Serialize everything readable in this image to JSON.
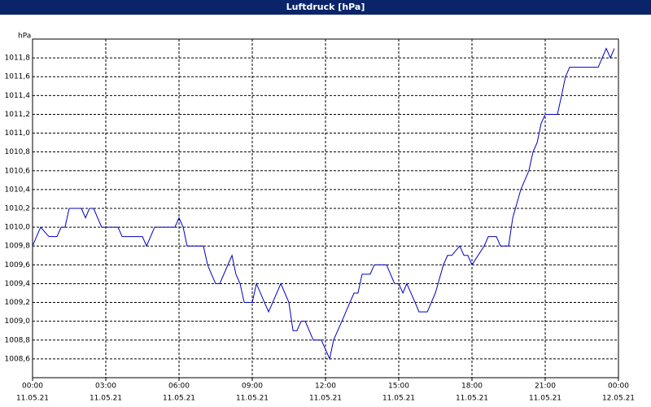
{
  "chart_data": {
    "type": "line",
    "title": "Luftdruck [hPa]",
    "y_label": "hPa",
    "x": [
      0,
      0.33,
      0.67,
      1.0,
      1.17,
      1.33,
      1.5,
      2.0,
      2.17,
      2.33,
      2.5,
      2.83,
      3.5,
      3.67,
      4.5,
      4.67,
      5.0,
      5.83,
      6.0,
      6.17,
      6.33,
      7.0,
      7.17,
      7.33,
      7.5,
      7.67,
      8.0,
      8.17,
      8.33,
      8.5,
      8.67,
      9.0,
      9.17,
      9.5,
      9.67,
      10.17,
      10.5,
      10.67,
      10.83,
      11.0,
      11.17,
      11.5,
      11.83,
      12.17,
      12.33,
      12.67,
      13.0,
      13.17,
      13.33,
      13.5,
      13.83,
      14.0,
      14.5,
      14.83,
      15.0,
      15.17,
      15.33,
      15.67,
      15.83,
      16.17,
      16.5,
      16.83,
      17.0,
      17.17,
      17.5,
      17.67,
      17.83,
      18.0,
      18.5,
      18.67,
      19.0,
      19.17,
      19.5,
      19.67,
      20.0,
      20.33,
      20.5,
      20.67,
      20.83,
      21.0,
      21.5,
      21.67,
      21.83,
      22.0,
      23.17,
      23.5,
      23.67,
      23.83
    ],
    "series": [
      {
        "color": "#0000c0",
        "values": [
          1009.8,
          1010.0,
          1009.9,
          1009.9,
          1010.0,
          1010.0,
          1010.2,
          1010.2,
          1010.1,
          1010.2,
          1010.2,
          1010.0,
          1010.0,
          1009.9,
          1009.9,
          1009.8,
          1010.0,
          1010.0,
          1010.1,
          1010.0,
          1009.8,
          1009.8,
          1009.6,
          1009.5,
          1009.4,
          1009.4,
          1009.6,
          1009.7,
          1009.5,
          1009.4,
          1009.2,
          1009.2,
          1009.4,
          1009.2,
          1009.1,
          1009.4,
          1009.2,
          1008.9,
          1008.9,
          1009.0,
          1009.0,
          1008.8,
          1008.8,
          1008.6,
          1008.8,
          1009.0,
          1009.2,
          1009.3,
          1009.3,
          1009.5,
          1009.5,
          1009.6,
          1009.6,
          1009.4,
          1009.4,
          1009.3,
          1009.4,
          1009.2,
          1009.1,
          1009.1,
          1009.3,
          1009.6,
          1009.7,
          1009.7,
          1009.8,
          1009.7,
          1009.7,
          1009.6,
          1009.8,
          1009.9,
          1009.9,
          1009.8,
          1009.8,
          1010.1,
          1010.4,
          1010.6,
          1010.8,
          1010.9,
          1011.1,
          1011.2,
          1011.2,
          1011.4,
          1011.6,
          1011.7,
          1011.7,
          1011.9,
          1011.8,
          1011.9
        ]
      }
    ],
    "xlim": [
      0,
      24
    ],
    "xticks": [
      {
        "value": 0,
        "label": "00:00",
        "date": "11.05.21"
      },
      {
        "value": 3,
        "label": "03:00",
        "date": "11.05.21"
      },
      {
        "value": 6,
        "label": "06:00",
        "date": "11.05.21"
      },
      {
        "value": 9,
        "label": "09:00",
        "date": "11.05.21"
      },
      {
        "value": 12,
        "label": "12:00",
        "date": "11.05.21"
      },
      {
        "value": 15,
        "label": "15:00",
        "date": "11.05.21"
      },
      {
        "value": 18,
        "label": "18:00",
        "date": "11.05.21"
      },
      {
        "value": 21,
        "label": "21:00",
        "date": "11.05.21"
      },
      {
        "value": 24,
        "label": "00:00",
        "date": "12.05.21"
      }
    ],
    "ylim": [
      1008.4,
      1012.0
    ],
    "yticks": [
      {
        "value": 1008.6,
        "label": "1008,6"
      },
      {
        "value": 1008.8,
        "label": "1008,8"
      },
      {
        "value": 1009.0,
        "label": "1009,0"
      },
      {
        "value": 1009.2,
        "label": "1009,2"
      },
      {
        "value": 1009.4,
        "label": "1009,4"
      },
      {
        "value": 1009.6,
        "label": "1009,6"
      },
      {
        "value": 1009.8,
        "label": "1009,8"
      },
      {
        "value": 1010.0,
        "label": "1010,0"
      },
      {
        "value": 1010.2,
        "label": "1010,2"
      },
      {
        "value": 1010.4,
        "label": "1010,4"
      },
      {
        "value": 1010.6,
        "label": "1010,6"
      },
      {
        "value": 1010.8,
        "label": "1010,8"
      },
      {
        "value": 1011.0,
        "label": "1011,0"
      },
      {
        "value": 1011.2,
        "label": "1011,2"
      },
      {
        "value": 1011.4,
        "label": "1011,4"
      },
      {
        "value": 1011.6,
        "label": "1011,6"
      },
      {
        "value": 1011.8,
        "label": "1011,8"
      }
    ],
    "grid": true
  }
}
